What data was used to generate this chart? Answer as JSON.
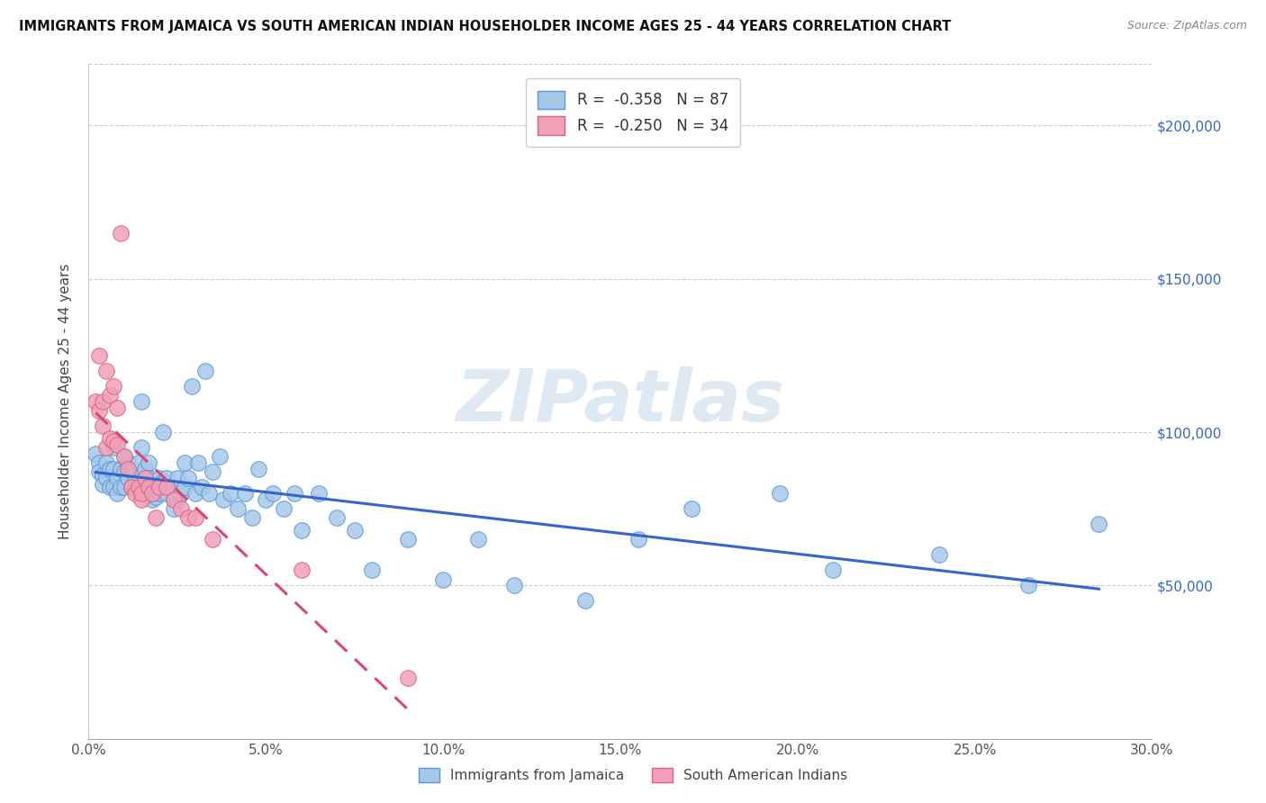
{
  "title": "IMMIGRANTS FROM JAMAICA VS SOUTH AMERICAN INDIAN HOUSEHOLDER INCOME AGES 25 - 44 YEARS CORRELATION CHART",
  "source": "Source: ZipAtlas.com",
  "ylabel": "Householder Income Ages 25 - 44 years",
  "xlim": [
    0.0,
    0.3
  ],
  "ylim": [
    0,
    220000
  ],
  "yticks": [
    50000,
    100000,
    150000,
    200000
  ],
  "ytick_labels": [
    "$50,000",
    "$100,000",
    "$150,000",
    "$200,000"
  ],
  "xtick_positions": [
    0.0,
    0.05,
    0.1,
    0.15,
    0.2,
    0.25,
    0.3
  ],
  "xtick_labels": [
    "0.0%",
    "5.0%",
    "10.0%",
    "15.0%",
    "20.0%",
    "25.0%",
    "30.0%"
  ],
  "legend_r_blue": "-0.358",
  "legend_n_blue": "87",
  "legend_r_pink": "-0.250",
  "legend_n_pink": "34",
  "blue_scatter_color": "#a8c8e8",
  "pink_scatter_color": "#f0a0b8",
  "blue_edge_color": "#5599dd",
  "pink_edge_color": "#e06080",
  "blue_line_color": "#3366cc",
  "pink_line_color": "#dd4477",
  "watermark": "ZIPatlas",
  "watermark_color": "#c5d8ec",
  "watermark_alpha": 0.55,
  "grid_color": "#cccccc",
  "background_color": "#ffffff",
  "jamaica_x": [
    0.002,
    0.003,
    0.003,
    0.004,
    0.004,
    0.005,
    0.005,
    0.006,
    0.006,
    0.007,
    0.007,
    0.007,
    0.008,
    0.008,
    0.009,
    0.009,
    0.01,
    0.01,
    0.01,
    0.011,
    0.011,
    0.012,
    0.012,
    0.013,
    0.013,
    0.014,
    0.014,
    0.015,
    0.015,
    0.016,
    0.016,
    0.017,
    0.017,
    0.018,
    0.018,
    0.019,
    0.019,
    0.02,
    0.02,
    0.021,
    0.021,
    0.022,
    0.022,
    0.023,
    0.024,
    0.024,
    0.025,
    0.025,
    0.026,
    0.027,
    0.027,
    0.028,
    0.029,
    0.03,
    0.031,
    0.032,
    0.033,
    0.034,
    0.035,
    0.037,
    0.038,
    0.04,
    0.042,
    0.044,
    0.046,
    0.048,
    0.05,
    0.052,
    0.055,
    0.058,
    0.06,
    0.065,
    0.07,
    0.075,
    0.08,
    0.09,
    0.1,
    0.11,
    0.12,
    0.14,
    0.155,
    0.17,
    0.195,
    0.21,
    0.24,
    0.265,
    0.285
  ],
  "jamaica_y": [
    93000,
    90000,
    87000,
    86000,
    83000,
    90000,
    85000,
    88000,
    82000,
    95000,
    88000,
    82000,
    85000,
    80000,
    88000,
    82000,
    92000,
    87000,
    82000,
    90000,
    85000,
    88000,
    82000,
    86000,
    82000,
    90000,
    84000,
    110000,
    95000,
    88000,
    82000,
    90000,
    85000,
    82000,
    78000,
    82000,
    79000,
    85000,
    80000,
    100000,
    84000,
    85000,
    80000,
    82000,
    78000,
    75000,
    85000,
    78000,
    80000,
    82000,
    90000,
    85000,
    115000,
    80000,
    90000,
    82000,
    120000,
    80000,
    87000,
    92000,
    78000,
    80000,
    75000,
    80000,
    72000,
    88000,
    78000,
    80000,
    75000,
    80000,
    68000,
    80000,
    72000,
    68000,
    55000,
    65000,
    52000,
    65000,
    50000,
    45000,
    65000,
    75000,
    80000,
    55000,
    60000,
    50000,
    70000
  ],
  "indian_x": [
    0.002,
    0.003,
    0.003,
    0.004,
    0.004,
    0.005,
    0.005,
    0.006,
    0.006,
    0.007,
    0.007,
    0.008,
    0.008,
    0.009,
    0.01,
    0.011,
    0.012,
    0.013,
    0.014,
    0.015,
    0.015,
    0.016,
    0.017,
    0.018,
    0.019,
    0.02,
    0.022,
    0.024,
    0.026,
    0.028,
    0.03,
    0.035,
    0.06,
    0.09
  ],
  "indian_y": [
    110000,
    125000,
    107000,
    110000,
    102000,
    120000,
    95000,
    112000,
    98000,
    115000,
    97000,
    108000,
    96000,
    165000,
    92000,
    88000,
    82000,
    80000,
    82000,
    78000,
    80000,
    85000,
    82000,
    80000,
    72000,
    82000,
    82000,
    78000,
    75000,
    72000,
    72000,
    65000,
    55000,
    20000
  ]
}
